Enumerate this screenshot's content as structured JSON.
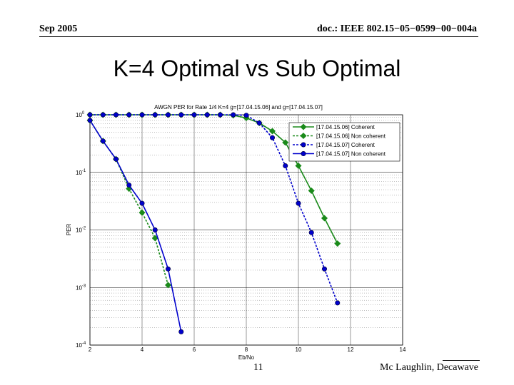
{
  "header": {
    "date": "Sep 2005",
    "doc": "doc.: IEEE 802.15−05−0599−00−004a"
  },
  "slide": {
    "title": "K=4 Optimal vs Sub Optimal"
  },
  "footer": {
    "page": "11",
    "author": "Mc Laughlin, Decawave"
  },
  "chart_data": {
    "type": "line",
    "title": "AWGN PER for Rate 1/4 K=4 g=[17.04.15.06] and g=[17.04.15.07]",
    "xlabel": "Eb/No",
    "ylabel": "PER",
    "xlim": [
      2,
      14
    ],
    "x_ticks": [
      "2",
      "4",
      "6",
      "8",
      "10",
      "12",
      "14"
    ],
    "y_scale": "log",
    "ylim": [
      0.0001,
      1
    ],
    "y_ticks": [
      {
        "base": "10",
        "exp": "-4"
      },
      {
        "base": "10",
        "exp": "-3"
      },
      {
        "base": "10",
        "exp": "-2"
      },
      {
        "base": "10",
        "exp": "-1"
      },
      {
        "base": "10",
        "exp": "0"
      }
    ],
    "grid": true,
    "legend_position": "top-right",
    "series": [
      {
        "name": "[17.04.15.06] Coherent",
        "color": "#1a8a1a",
        "marker": "diamond",
        "line": "solid",
        "x": [
          2,
          2.5,
          3,
          3.5,
          4,
          4.5,
          5,
          5.5,
          6,
          6.5,
          7,
          7.5,
          8,
          8.5,
          9,
          9.5,
          10,
          10.5,
          11,
          11.5
        ],
        "y": [
          1,
          1,
          1,
          1,
          1,
          1,
          1,
          1,
          1,
          1,
          1,
          0.98,
          0.88,
          0.72,
          0.52,
          0.33,
          0.13,
          0.048,
          0.016,
          0.0058
        ]
      },
      {
        "name": "[17.04.15.06] Non coherent",
        "color": "#1a8a1a",
        "marker": "diamond",
        "line": "dashed",
        "x": [
          2,
          2.5,
          3,
          3.5,
          4,
          4.5,
          5
        ],
        "y": [
          0.8,
          0.35,
          0.17,
          0.052,
          0.02,
          0.0072,
          0.0011
        ]
      },
      {
        "name": "[17.04.15.07] Coherent",
        "color": "#0000cc",
        "marker": "circle",
        "line": "dashed",
        "x": [
          2,
          2.5,
          3,
          3.5,
          4,
          4.5,
          5,
          5.5,
          6,
          6.5,
          7,
          7.5,
          8,
          8.5,
          9,
          9.5,
          10,
          10.5,
          11,
          11.5
        ],
        "y": [
          1,
          1,
          1,
          1,
          1,
          1,
          1,
          1,
          1,
          1,
          1,
          1,
          0.98,
          0.72,
          0.4,
          0.13,
          0.029,
          0.009,
          0.0021,
          0.00054
        ]
      },
      {
        "name": "[17.04.15.07] Non coherent",
        "color": "#0000cc",
        "marker": "circle",
        "line": "solid",
        "x": [
          2,
          2.5,
          3,
          3.5,
          4,
          4.5,
          5,
          5.5
        ],
        "y": [
          0.8,
          0.35,
          0.17,
          0.06,
          0.029,
          0.01,
          0.0021,
          0.00017
        ]
      }
    ]
  }
}
